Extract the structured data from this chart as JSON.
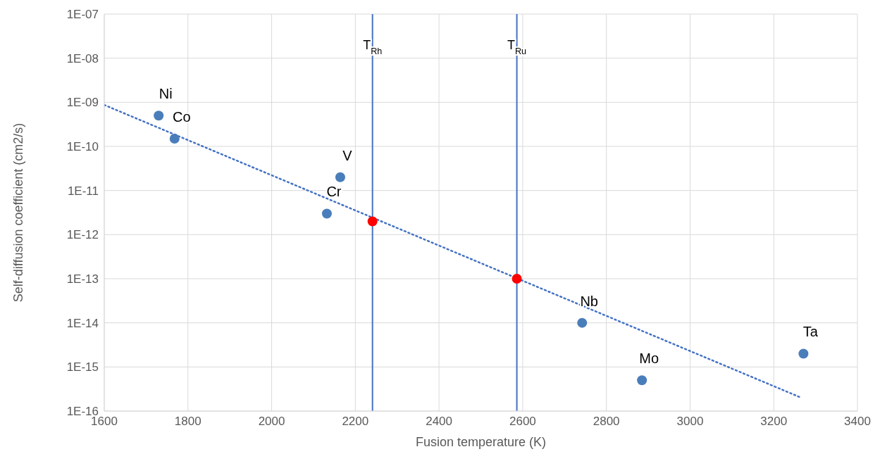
{
  "chart_data": {
    "type": "scatter",
    "xlabel": "Fusion temperature (K)",
    "ylabel": "Self-diffusion coefficient (cm2/s)",
    "xlim": [
      1600,
      3400
    ],
    "xticks": [
      1600,
      1800,
      2000,
      2200,
      2400,
      2600,
      2800,
      3000,
      3200,
      3400
    ],
    "ylim": [
      1e-16,
      1e-07
    ],
    "yticks": [
      {
        "value": 1e-16,
        "label": "1E-16"
      },
      {
        "value": 1e-15,
        "label": "1E-15"
      },
      {
        "value": 1e-14,
        "label": "1E-14"
      },
      {
        "value": 1e-13,
        "label": "1E-13"
      },
      {
        "value": 1e-12,
        "label": "1E-12"
      },
      {
        "value": 1e-11,
        "label": "1E-11"
      },
      {
        "value": 1e-10,
        "label": "1E-10"
      },
      {
        "value": 1e-09,
        "label": "1E-09"
      },
      {
        "value": 1e-08,
        "label": "1E-08"
      },
      {
        "value": 1e-07,
        "label": "1E-07"
      }
    ],
    "log": "y",
    "grid": true,
    "legend": false,
    "marker": "circle",
    "series": [
      {
        "color": "#4a7ebb",
        "x": [
          1730,
          1768,
          2164,
          2132,
          2742,
          2885,
          3271
        ],
        "values": [
          5e-10,
          1.5e-10,
          2e-11,
          3e-12,
          1e-14,
          5e-16,
          2e-15
        ]
      },
      {
        "color": "#ff0000",
        "x": [
          2241,
          2586
        ],
        "values": [
          2e-12,
          1e-13
        ]
      },
      {
        "type": "line",
        "color": "#4472c4",
        "line_style": "dotted",
        "marker": "none",
        "x": [
          1600,
          3266
        ],
        "values": [
          8.7e-10,
          2e-16
        ]
      }
    ],
    "ref_lines": [
      {
        "axis": "x",
        "value": 2241,
        "label": "T$_{Rh}$",
        "color": "#4472c4"
      },
      {
        "axis": "x",
        "value": 2586,
        "label": "T$_{Ru}$",
        "color": "#4472c4"
      }
    ],
    "annotations": [
      {
        "text": "Ni",
        "x": 1730,
        "y": 5e-10
      },
      {
        "text": "Co",
        "x": 1768,
        "y": 1.5e-10
      },
      {
        "text": "V",
        "x": 2164,
        "y": 2e-11
      },
      {
        "text": "Cr",
        "x": 2132,
        "y": 3e-12
      },
      {
        "text": "Nb",
        "x": 2742,
        "y": 1e-14
      },
      {
        "text": "Mo",
        "x": 2885,
        "y": 5e-16
      },
      {
        "text": "Ta",
        "x": 3271,
        "y": 2e-15
      }
    ]
  }
}
